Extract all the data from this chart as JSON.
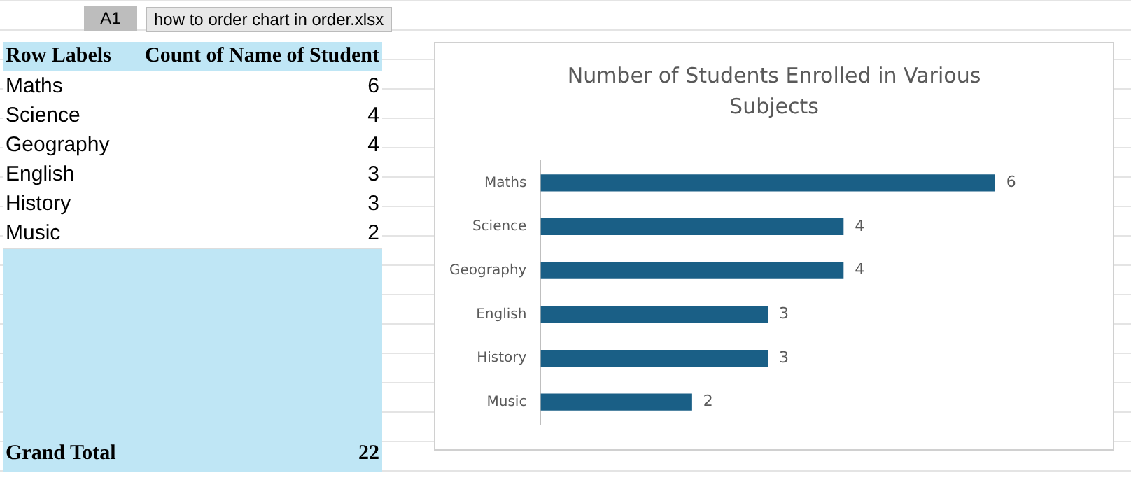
{
  "chart_data": {
    "type": "bar",
    "orientation": "horizontal",
    "title": "Number of Students Enrolled in Various Subjects",
    "categories": [
      "Maths",
      "Science",
      "Geography",
      "English",
      "History",
      "Music"
    ],
    "values": [
      6,
      4,
      4,
      3,
      3,
      2
    ],
    "color": "#1a5f86",
    "data_labels": true,
    "legend": false,
    "annotations": [
      "A1",
      "how to order chart in order.xlsx",
      "Row Labels",
      "Count of Name of Student",
      "Grand Total",
      "22",
      "6",
      "4",
      "4",
      "3",
      "3",
      "2"
    ]
  }
}
